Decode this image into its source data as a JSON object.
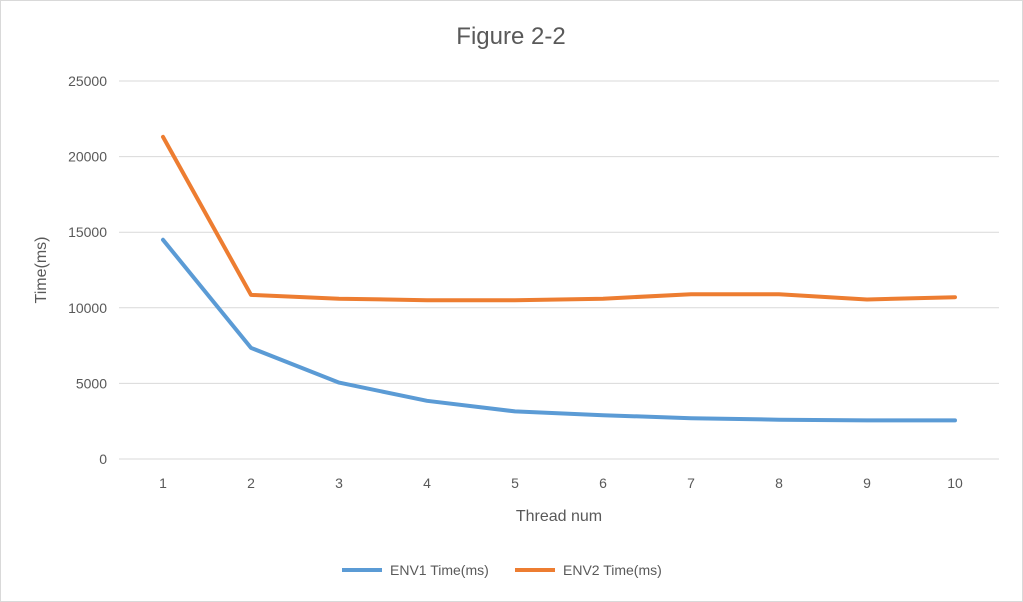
{
  "chart_data": {
    "type": "line",
    "title": "Figure 2-2",
    "xlabel": "Thread num",
    "ylabel": "Time(ms)",
    "categories": [
      "1",
      "2",
      "3",
      "4",
      "5",
      "6",
      "7",
      "8",
      "9",
      "10"
    ],
    "yticks": [
      "0",
      "5000",
      "10000",
      "15000",
      "20000",
      "25000"
    ],
    "ylim": [
      0,
      25000
    ],
    "grid": true,
    "legend_position": "bottom",
    "series": [
      {
        "name": "ENV1 Time(ms)",
        "color": "#5b9bd5",
        "values": [
          14500,
          7350,
          5050,
          3850,
          3150,
          2900,
          2700,
          2600,
          2550,
          2550
        ]
      },
      {
        "name": "ENV2 Time(ms)",
        "color": "#ed7d31",
        "values": [
          21300,
          10850,
          10600,
          10500,
          10500,
          10600,
          10900,
          10900,
          10550,
          10700
        ]
      }
    ]
  }
}
